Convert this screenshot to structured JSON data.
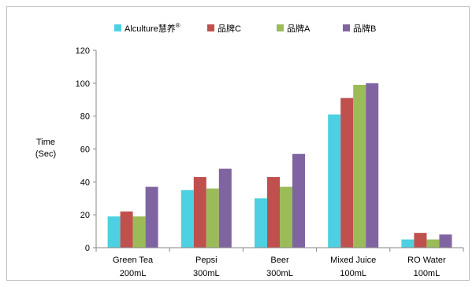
{
  "chart_data": {
    "type": "bar",
    "title": "",
    "ylabel": [
      "Time",
      "(Sec)"
    ],
    "xlabel": "",
    "ylim": [
      0,
      120
    ],
    "yticks": [
      0,
      20,
      40,
      60,
      80,
      100,
      120
    ],
    "grid": false,
    "legend_position": "top",
    "categories": [
      [
        "Green Tea",
        "200mL"
      ],
      [
        "Pepsi",
        "300mL"
      ],
      [
        "Beer",
        "300mL"
      ],
      [
        "Mixed Juice",
        "100mL"
      ],
      [
        "RO Water",
        "100mL"
      ]
    ],
    "series": [
      {
        "name": "Alculture慧养",
        "name_superscript": "®",
        "color": "#4dd0e1",
        "values": [
          19,
          35,
          30,
          81,
          5
        ]
      },
      {
        "name": "品牌C",
        "color": "#c0504d",
        "values": [
          22,
          43,
          43,
          91,
          9
        ]
      },
      {
        "name": "品牌A",
        "color": "#9bbb59",
        "values": [
          19,
          36,
          37,
          99,
          5
        ]
      },
      {
        "name": "品牌B",
        "color": "#8064a2",
        "values": [
          37,
          48,
          57,
          100,
          8
        ]
      }
    ]
  }
}
